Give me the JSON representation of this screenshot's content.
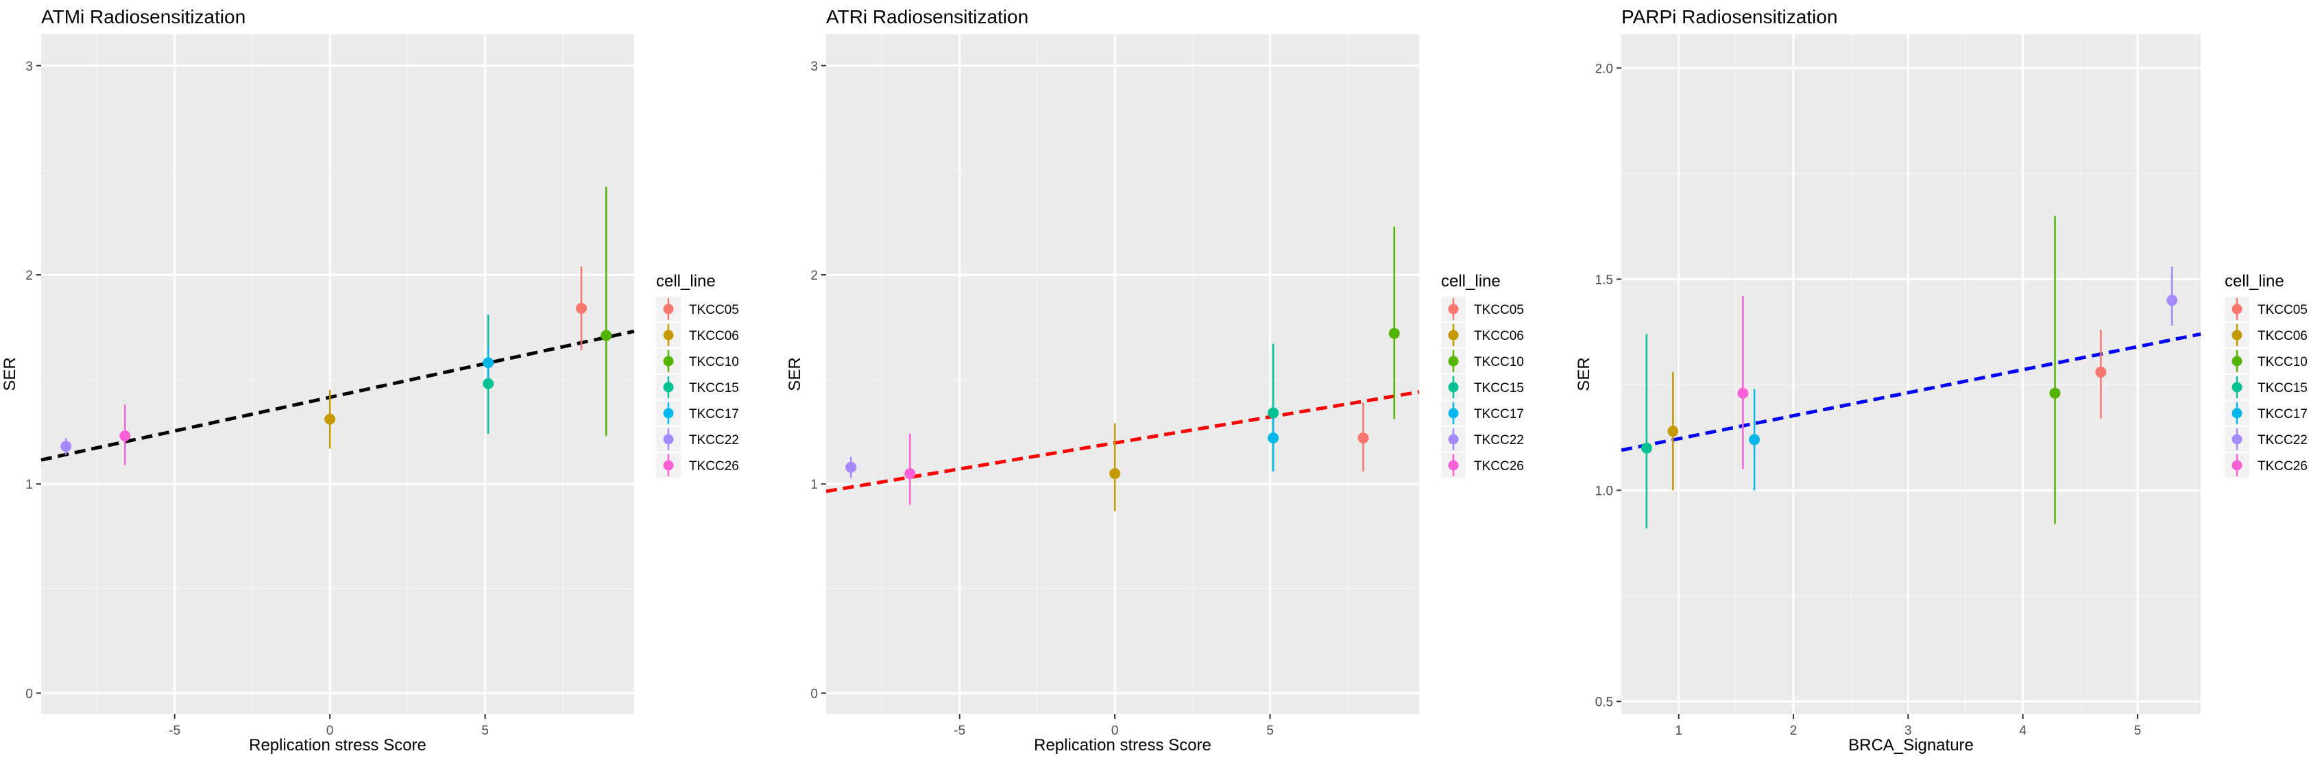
{
  "chart_data": [
    {
      "type": "scatter",
      "title": "ATMi Radiosensitization",
      "xlabel": "Replication stress Score",
      "ylabel": "SER",
      "xlim": [
        -9.3,
        9.8
      ],
      "ylim": [
        -0.1,
        3.15
      ],
      "xticks": [
        -5,
        0,
        5
      ],
      "yticks": [
        0,
        1,
        2,
        3
      ],
      "grid": true,
      "legend": {
        "title": "cell_line",
        "position": "right"
      },
      "fit_line": {
        "style": "dashed",
        "color": "#000000",
        "x": [
          -9.3,
          9.8
        ],
        "y": [
          1.115,
          1.73
        ]
      },
      "series": [
        {
          "name": "TKCC05",
          "color": "#F8766D",
          "x": 8.1,
          "y": 1.84,
          "ymin": 1.64,
          "ymax": 2.04
        },
        {
          "name": "TKCC06",
          "color": "#C49A00",
          "x": 0.0,
          "y": 1.31,
          "ymin": 1.17,
          "ymax": 1.45
        },
        {
          "name": "TKCC10",
          "color": "#53B400",
          "x": 8.9,
          "y": 1.71,
          "ymin": 1.23,
          "ymax": 2.42
        },
        {
          "name": "TKCC15",
          "color": "#00C094",
          "x": 5.1,
          "y": 1.48,
          "ymin": 1.24,
          "ymax": 1.81
        },
        {
          "name": "TKCC17",
          "color": "#00B6EB",
          "x": 5.1,
          "y": 1.58,
          "ymin": 1.5,
          "ymax": 1.66
        },
        {
          "name": "TKCC22",
          "color": "#A58AFF",
          "x": -8.5,
          "y": 1.18,
          "ymin": 1.14,
          "ymax": 1.22
        },
        {
          "name": "TKCC26",
          "color": "#FB61D7",
          "x": -6.6,
          "y": 1.23,
          "ymin": 1.09,
          "ymax": 1.38
        }
      ]
    },
    {
      "type": "scatter",
      "title": "ATRi Radiosensitization",
      "xlabel": "Replication stress Score",
      "ylabel": "SER",
      "xlim": [
        -9.3,
        9.8
      ],
      "ylim": [
        -0.1,
        3.15
      ],
      "xticks": [
        -5,
        0,
        5
      ],
      "yticks": [
        0,
        1,
        2,
        3
      ],
      "grid": true,
      "legend": {
        "title": "cell_line",
        "position": "right"
      },
      "fit_line": {
        "style": "dashed",
        "color": "#FF0000",
        "x": [
          -9.3,
          9.8
        ],
        "y": [
          0.965,
          1.44
        ]
      },
      "series": [
        {
          "name": "TKCC05",
          "color": "#F8766D",
          "x": 8.0,
          "y": 1.22,
          "ymin": 1.06,
          "ymax": 1.39
        },
        {
          "name": "TKCC06",
          "color": "#C49A00",
          "x": 0.0,
          "y": 1.05,
          "ymin": 0.87,
          "ymax": 1.29
        },
        {
          "name": "TKCC10",
          "color": "#53B400",
          "x": 9.0,
          "y": 1.72,
          "ymin": 1.31,
          "ymax": 2.23
        },
        {
          "name": "TKCC15",
          "color": "#00C094",
          "x": 5.1,
          "y": 1.34,
          "ymin": 1.06,
          "ymax": 1.67
        },
        {
          "name": "TKCC17",
          "color": "#00B6EB",
          "x": 5.1,
          "y": 1.22,
          "ymin": 1.06,
          "ymax": 1.37
        },
        {
          "name": "TKCC22",
          "color": "#A58AFF",
          "x": -8.5,
          "y": 1.08,
          "ymin": 1.03,
          "ymax": 1.13
        },
        {
          "name": "TKCC26",
          "color": "#FB61D7",
          "x": -6.6,
          "y": 1.05,
          "ymin": 0.9,
          "ymax": 1.24
        }
      ]
    },
    {
      "type": "scatter",
      "title": "PARPi Radiosensitization",
      "xlabel": "BRCA_Signature",
      "ylabel": "SER",
      "xlim": [
        0.5,
        5.55
      ],
      "ylim": [
        0.47,
        2.08
      ],
      "xticks": [
        1,
        2,
        3,
        4,
        5
      ],
      "yticks": [
        0.5,
        1.0,
        1.5,
        2.0
      ],
      "ytick_labels": [
        "0.5",
        "1.0",
        "1.5",
        "2.0"
      ],
      "grid": true,
      "legend": {
        "title": "cell_line",
        "position": "right"
      },
      "fit_line": {
        "style": "dashed",
        "color": "#0000FF",
        "x": [
          0.5,
          5.55
        ],
        "y": [
          1.095,
          1.37
        ]
      },
      "series": [
        {
          "name": "TKCC05",
          "color": "#F8766D",
          "x": 4.68,
          "y": 1.28,
          "ymin": 1.17,
          "ymax": 1.38
        },
        {
          "name": "TKCC06",
          "color": "#C49A00",
          "x": 0.95,
          "y": 1.14,
          "ymin": 1.0,
          "ymax": 1.28
        },
        {
          "name": "TKCC10",
          "color": "#53B400",
          "x": 4.28,
          "y": 1.23,
          "ymin": 0.92,
          "ymax": 1.65
        },
        {
          "name": "TKCC15",
          "color": "#00C094",
          "x": 0.72,
          "y": 1.1,
          "ymin": 0.91,
          "ymax": 1.37
        },
        {
          "name": "TKCC17",
          "color": "#00B6EB",
          "x": 1.66,
          "y": 1.12,
          "ymin": 1.0,
          "ymax": 1.24
        },
        {
          "name": "TKCC22",
          "color": "#A58AFF",
          "x": 5.3,
          "y": 1.45,
          "ymin": 1.39,
          "ymax": 1.53
        },
        {
          "name": "TKCC26",
          "color": "#FB61D7",
          "x": 1.56,
          "y": 1.23,
          "ymin": 1.05,
          "ymax": 1.46
        }
      ]
    }
  ]
}
